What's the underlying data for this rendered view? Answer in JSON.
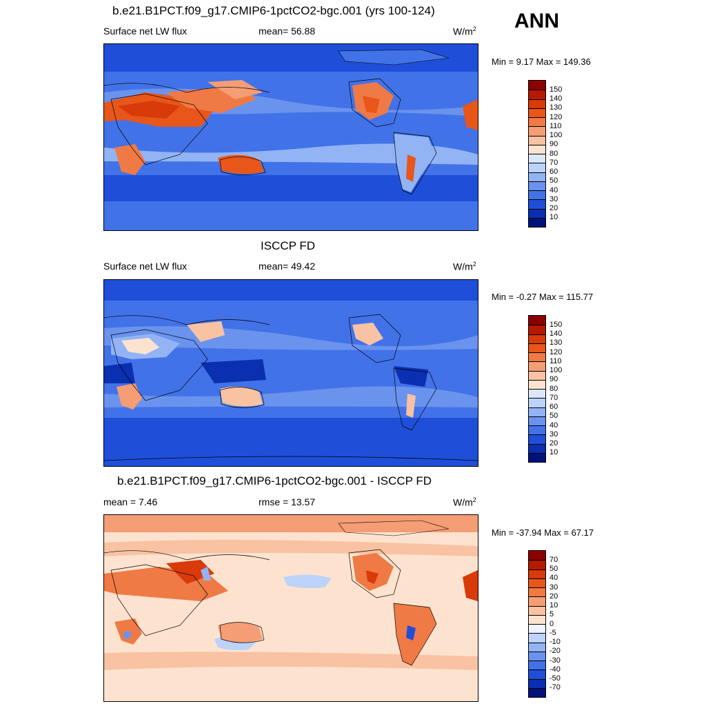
{
  "season": "ANN",
  "panels": [
    {
      "title": "b.e21.B1PCT.f09_g17.CMIP6-1pctCO2-bgc.001 (yrs 100-124)",
      "left_label": "Surface net LW flux",
      "center_label": "mean=  56.88",
      "units_base": "W/m",
      "units_exp": "2",
      "minmax": "Min =   9.17 Max = 149.36",
      "colorbar": {
        "levels": [
          "150",
          "140",
          "130",
          "120",
          "110",
          "100",
          "90",
          "80",
          "70",
          "60",
          "50",
          "40",
          "30",
          "20",
          "10"
        ],
        "colors": [
          "#8b0000",
          "#b51a00",
          "#d93a0a",
          "#e8561a",
          "#f07a45",
          "#f59d75",
          "#f9c2a2",
          "#fde3cf",
          "#dbe8fb",
          "#bcd3fa",
          "#92b4f5",
          "#6a93ee",
          "#4272e8",
          "#1f4fd8",
          "#0a2fb0",
          "#00127a"
        ]
      }
    },
    {
      "title": "ISCCP FD",
      "left_label": "Surface net LW flux",
      "center_label": "mean=  49.42",
      "units_base": "W/m",
      "units_exp": "2",
      "minmax": "Min =  -0.27 Max = 115.77",
      "colorbar": {
        "levels": [
          "150",
          "140",
          "130",
          "120",
          "110",
          "100",
          "90",
          "80",
          "70",
          "60",
          "50",
          "40",
          "30",
          "20",
          "10"
        ],
        "colors": [
          "#8b0000",
          "#b51a00",
          "#d93a0a",
          "#e8561a",
          "#f07a45",
          "#f59d75",
          "#f9c2a2",
          "#fde3cf",
          "#dbe8fb",
          "#bcd3fa",
          "#92b4f5",
          "#6a93ee",
          "#4272e8",
          "#1f4fd8",
          "#0a2fb0",
          "#00127a"
        ]
      }
    },
    {
      "title": "b.e21.B1PCT.f09_g17.CMIP6-1pctCO2-bgc.001 - ISCCP FD",
      "left_label": "mean =   7.46",
      "center_label": "rmse =  13.57",
      "units_base": "W/m",
      "units_exp": "2",
      "minmax": "Min = -37.94 Max =  67.17",
      "colorbar": {
        "levels": [
          "70",
          "50",
          "40",
          "30",
          "20",
          "10",
          "5",
          "0",
          "-5",
          "-10",
          "-20",
          "-30",
          "-40",
          "-50",
          "-70"
        ],
        "colors": [
          "#8b0000",
          "#b51a00",
          "#d93a0a",
          "#e8561a",
          "#f07a45",
          "#f59d75",
          "#f9c2a2",
          "#fde3cf",
          "#eef3fd",
          "#bcd3fa",
          "#92b4f5",
          "#6a93ee",
          "#4272e8",
          "#1f4fd8",
          "#0a2fb0",
          "#00127a"
        ]
      }
    }
  ]
}
